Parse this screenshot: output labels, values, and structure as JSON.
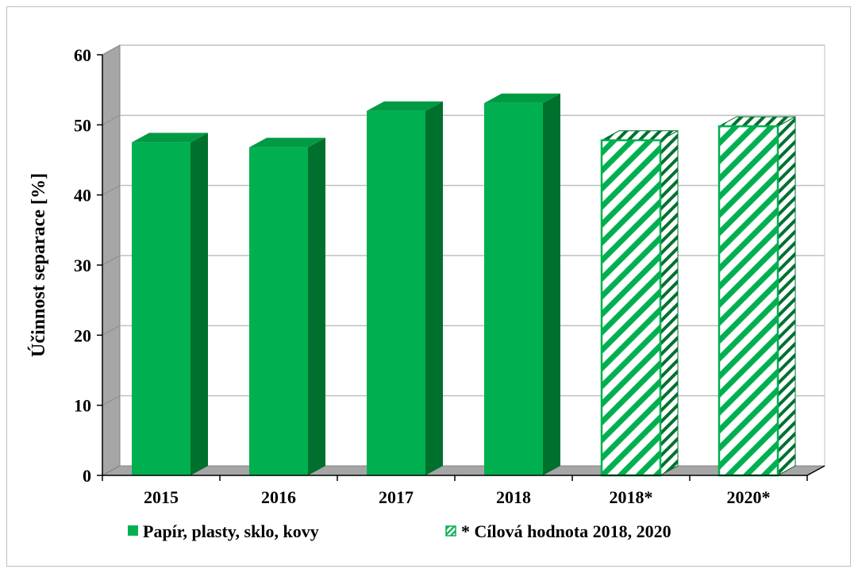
{
  "chart_data": {
    "type": "bar",
    "title": "",
    "ylabel": "Účinnost separace [%]",
    "xlabel": "",
    "ylim": [
      0,
      60
    ],
    "yticks": [
      0,
      10,
      20,
      30,
      40,
      50,
      60
    ],
    "categories": [
      "2015",
      "2016",
      "2017",
      "2018",
      "2018*",
      "2020*"
    ],
    "series": [
      {
        "name": "Papír, plasty, sklo, kovy",
        "values": [
          47.5,
          46.8,
          52.0,
          53.1,
          null,
          null
        ],
        "style": "solid"
      },
      {
        "name": "* Cílová hodnota 2018, 2020",
        "values": [
          null,
          null,
          null,
          null,
          47.8,
          49.8
        ],
        "style": "hatched"
      }
    ],
    "grid": true,
    "legend_position": "bottom",
    "colors": {
      "bar_front": "#00b050",
      "bar_side": "#00702f",
      "bar_top": "#009a44",
      "wall": "#ffffff",
      "floor": "#a6a6a6",
      "left_wall": "#a6a6a6",
      "grid": "#bfbfbf"
    }
  }
}
